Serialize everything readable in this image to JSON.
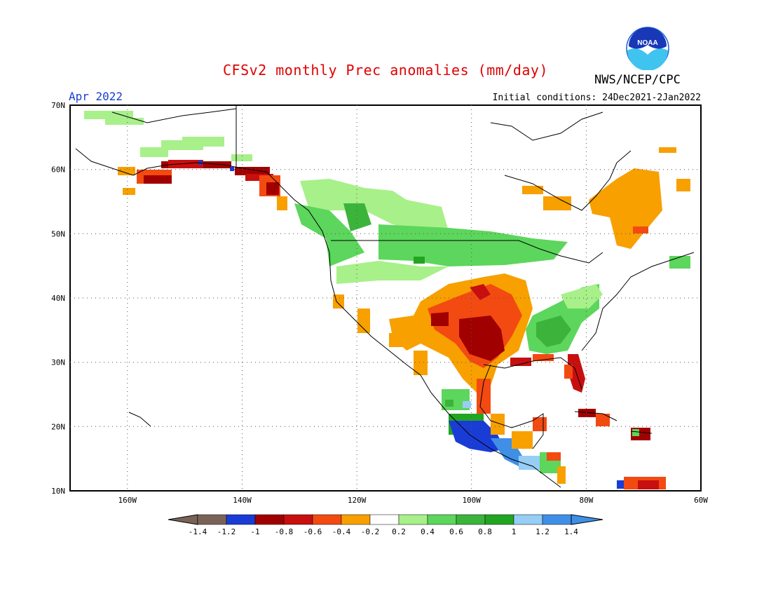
{
  "title": "CFSv2 monthly Prec anomalies (mm/day)",
  "agency": "NWS/NCEP/CPC",
  "logo_text": "NOAA",
  "valid_month": "Apr 2022",
  "initial_conditions": "Initial conditions: 24Dec2021-2Jan2022",
  "map": {
    "lat_labels": [
      "70N",
      "60N",
      "50N",
      "40N",
      "30N",
      "20N",
      "10N"
    ],
    "lon_labels": [
      "160W",
      "140W",
      "120W",
      "100W",
      "80W",
      "60W"
    ],
    "extent": {
      "lon": [
        -170,
        -60
      ],
      "lat": [
        10,
        70
      ]
    }
  },
  "colorbar": {
    "colors": [
      "#7b6258",
      "#1a3cd6",
      "#a10000",
      "#c80f0f",
      "#f34a12",
      "#f7a000",
      "#ffffff",
      "#a8f08a",
      "#5cd65c",
      "#3cb43c",
      "#22a522",
      "#96cef5",
      "#3f8fe6"
    ],
    "labels": [
      "-1.4",
      "-1.2",
      "-1",
      "-0.8",
      "-0.6",
      "-0.4",
      "-0.2",
      "0.2",
      "0.4",
      "0.6",
      "0.8",
      "1",
      "1.2",
      "1.4"
    ],
    "under_color": "#7b6258",
    "over_color": "#3f8fe6"
  }
}
